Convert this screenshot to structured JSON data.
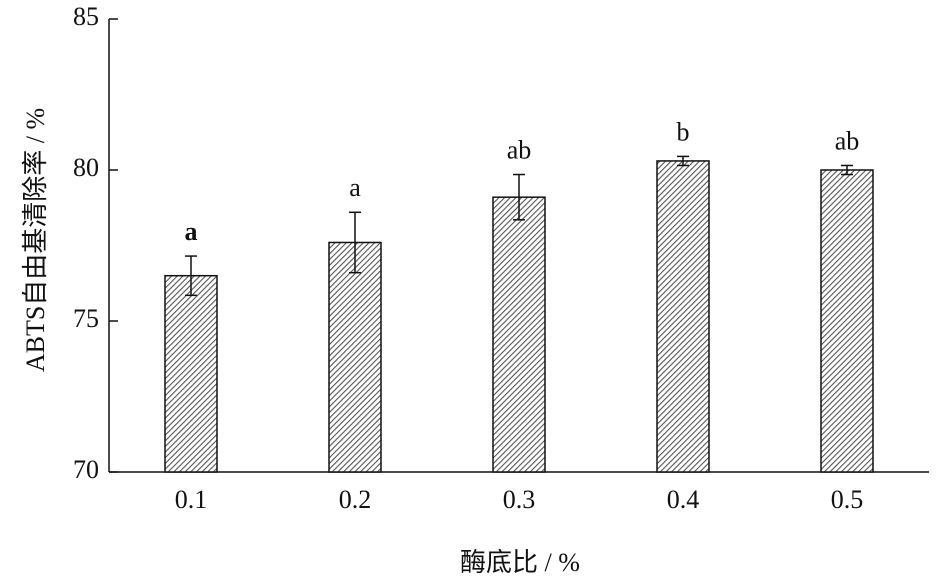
{
  "chart_data": {
    "type": "bar",
    "x_label": "酶底比 / %",
    "y_label": "ABTS自由基清除率 / %",
    "categories": [
      "0.1",
      "0.2",
      "0.3",
      "0.4",
      "0.5"
    ],
    "values": [
      76.5,
      77.6,
      79.1,
      80.3,
      80.0
    ],
    "errors": [
      0.65,
      1.0,
      0.75,
      0.15,
      0.15
    ],
    "annotations": [
      "a",
      "a",
      "ab",
      "b",
      "ab"
    ],
    "color": "#555555",
    "ylim": [
      70,
      85
    ],
    "yticks": [
      70,
      75,
      80,
      85
    ]
  }
}
